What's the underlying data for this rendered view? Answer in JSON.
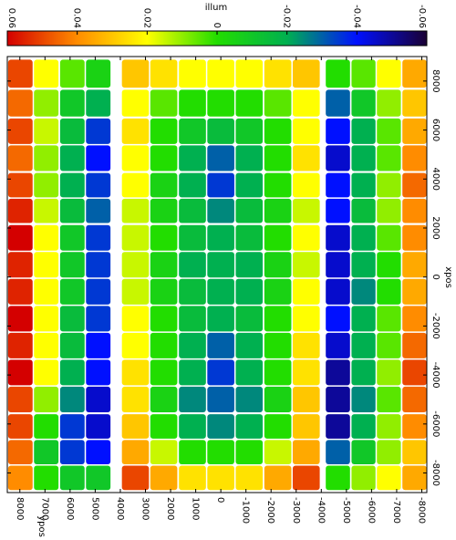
{
  "chart_data": {
    "type": "heatmap",
    "colorbar_label": "illum",
    "xlabel": "xpos",
    "ylabel": "ypos",
    "x": [
      8300,
      7100,
      5950,
      4850,
      3750,
      2700,
      1600,
      500,
      -600,
      -1700,
      -2800,
      -3900,
      -5000,
      -6100,
      -7150,
      -8200
    ],
    "y": [
      7980,
      6950,
      5910,
      4880,
      3400,
      2270,
      1130,
      0,
      -1130,
      -2270,
      -3400,
      -4660,
      -5680,
      -6690,
      -7710
    ],
    "values": [
      [
        0.05,
        0.02,
        0.005,
        -0.005,
        0.03,
        0.025,
        0.02,
        0.02,
        0.02,
        0.025,
        0.03,
        0.0,
        0.005,
        0.02,
        0.035
      ],
      [
        0.045,
        0.01,
        -0.01,
        -0.02,
        0.02,
        0.005,
        0.0,
        0.0,
        0.0,
        0.005,
        0.02,
        -0.03,
        -0.01,
        0.01,
        0.03
      ],
      [
        0.05,
        0.015,
        -0.015,
        -0.035,
        0.025,
        0.0,
        -0.01,
        -0.015,
        -0.01,
        0.0,
        0.02,
        -0.04,
        -0.02,
        0.005,
        0.035
      ],
      [
        0.045,
        0.01,
        -0.02,
        -0.04,
        0.02,
        0.0,
        -0.02,
        -0.03,
        -0.02,
        0.0,
        0.025,
        -0.045,
        -0.02,
        0.005,
        0.04
      ],
      [
        0.05,
        0.01,
        -0.02,
        -0.035,
        0.02,
        -0.005,
        -0.02,
        -0.035,
        -0.02,
        0.0,
        0.02,
        -0.04,
        -0.02,
        0.01,
        0.045
      ],
      [
        0.055,
        0.015,
        -0.015,
        -0.03,
        0.015,
        -0.005,
        -0.015,
        -0.025,
        -0.015,
        -0.005,
        0.015,
        -0.04,
        -0.015,
        0.01,
        0.04
      ],
      [
        0.06,
        0.02,
        -0.01,
        -0.035,
        0.015,
        0.0,
        -0.015,
        -0.02,
        -0.015,
        0.0,
        0.02,
        -0.045,
        -0.02,
        0.005,
        0.04
      ],
      [
        0.055,
        0.02,
        -0.01,
        -0.035,
        0.015,
        -0.005,
        -0.02,
        -0.02,
        -0.02,
        -0.005,
        0.015,
        -0.045,
        -0.02,
        0.0,
        0.035
      ],
      [
        0.055,
        0.02,
        -0.01,
        -0.035,
        0.015,
        -0.005,
        -0.015,
        -0.02,
        -0.02,
        -0.005,
        0.02,
        -0.045,
        -0.025,
        0.0,
        0.035
      ],
      [
        0.06,
        0.02,
        -0.015,
        -0.035,
        0.02,
        0.0,
        -0.015,
        -0.02,
        -0.015,
        0.0,
        0.02,
        -0.04,
        -0.02,
        0.005,
        0.04
      ],
      [
        0.055,
        0.02,
        -0.015,
        -0.04,
        0.02,
        0.0,
        -0.02,
        -0.03,
        -0.02,
        0.0,
        0.025,
        -0.045,
        -0.02,
        0.005,
        0.045
      ],
      [
        0.06,
        0.02,
        -0.02,
        -0.04,
        0.025,
        0.0,
        -0.02,
        -0.035,
        -0.02,
        0.0,
        0.025,
        -0.05,
        -0.02,
        0.01,
        0.05
      ],
      [
        0.05,
        0.01,
        -0.025,
        -0.045,
        0.025,
        -0.005,
        -0.025,
        -0.03,
        -0.025,
        -0.005,
        0.03,
        -0.05,
        -0.025,
        0.005,
        0.045
      ],
      [
        0.05,
        0.0,
        -0.035,
        -0.045,
        0.03,
        0.0,
        -0.02,
        -0.025,
        -0.02,
        0.0,
        0.03,
        -0.05,
        -0.02,
        0.01,
        0.04
      ],
      [
        0.045,
        -0.01,
        -0.035,
        -0.04,
        0.035,
        0.015,
        0.0,
        0.0,
        0.0,
        0.015,
        0.035,
        -0.03,
        -0.01,
        0.01,
        0.03
      ],
      [
        0.04,
        0.0,
        -0.01,
        -0.01,
        0.05,
        0.035,
        0.025,
        0.025,
        0.025,
        0.035,
        0.05,
        0.0,
        0.01,
        0.02,
        0.035
      ]
    ],
    "xlim": [
      -8800,
      9000
    ],
    "xticks": [
      -8000,
      -6000,
      -4000,
      -2000,
      0,
      2000,
      4000,
      6000,
      8000
    ],
    "ylim": [
      8500,
      -8200
    ],
    "yticks": [
      8000,
      7000,
      6000,
      5000,
      4000,
      3000,
      2000,
      1000,
      0,
      -1000,
      -2000,
      -3000,
      -4000,
      -5000,
      -6000,
      -7000,
      -8000
    ],
    "clim": [
      0.06,
      -0.06
    ],
    "cticks": [
      0.06,
      0.04,
      0.02,
      0,
      -0.02,
      -0.04,
      -0.06
    ],
    "colormap": [
      {
        "value": 0.06,
        "color": "#d40000"
      },
      {
        "value": 0.04,
        "color": "#ff8c00"
      },
      {
        "value": 0.02,
        "color": "#ffff00"
      },
      {
        "value": 0.0,
        "color": "#22dd00"
      },
      {
        "value": -0.02,
        "color": "#00b050"
      },
      {
        "value": -0.04,
        "color": "#0010ff"
      },
      {
        "value": -0.06,
        "color": "#1a0033"
      }
    ]
  }
}
